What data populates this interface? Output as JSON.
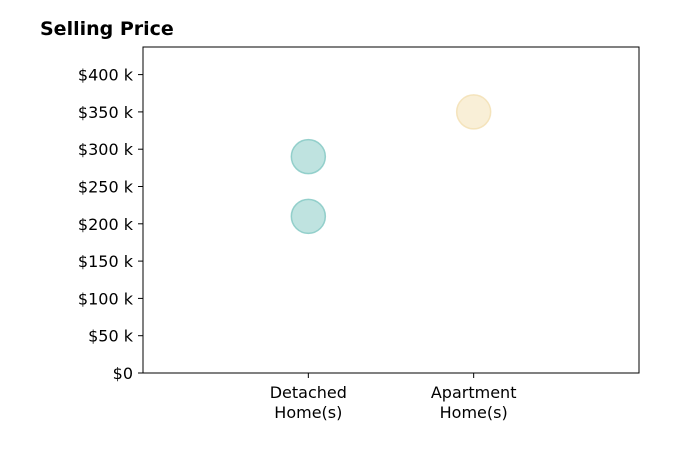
{
  "chart_data": {
    "type": "scatter",
    "title": "Selling Price",
    "categories": [
      "Detached\nHome(s)",
      "Apartment\nHome(s)"
    ],
    "y_tick_labels": [
      "$0",
      "$50 k",
      "$100 k",
      "$150 k",
      "$200 k",
      "$250 k",
      "$300 k",
      "$350 k",
      "$400 k"
    ],
    "y_ticks": [
      0,
      50000,
      100000,
      150000,
      200000,
      250000,
      300000,
      350000,
      400000
    ],
    "ylim": [
      0,
      437000
    ],
    "xlim": [
      -1,
      2
    ],
    "grid": false,
    "series": [
      {
        "category_index": 0,
        "points": [
          {
            "x": 0,
            "y": 210000
          },
          {
            "x": 0,
            "y": 290000
          }
        ],
        "color": "#7fc7c2"
      },
      {
        "category_index": 1,
        "points": [
          {
            "x": 1,
            "y": 350000
          }
        ],
        "color": "#f3dfb0"
      }
    ]
  }
}
